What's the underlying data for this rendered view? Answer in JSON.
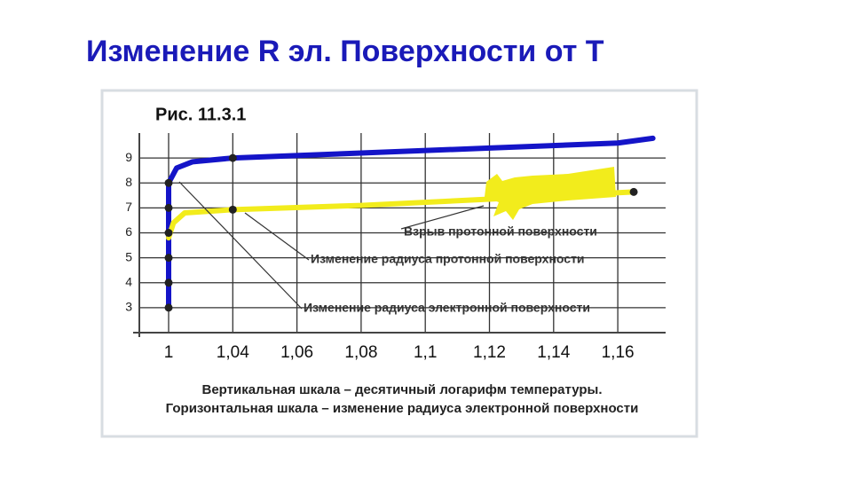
{
  "title": "Изменение R эл. Поверхности от T",
  "chart_data": {
    "type": "line",
    "figure_label": "Рис. 11.3.1",
    "caption": [
      "Вертикальная шкала – десятичный логарифм температуры.",
      "Горизонтальная шкала – изменение радиуса электронной поверхности"
    ],
    "xlim": [
      0.981,
      1.175
    ],
    "xticks": [
      1,
      {
        "value": 1.04,
        "label": "1,04"
      },
      {
        "value": 1.06,
        "label": "1,06"
      },
      {
        "value": 1.08,
        "label": "1,08"
      },
      {
        "value": 1.1,
        "label": "1,1"
      },
      {
        "value": 1.12,
        "label": "1,12"
      },
      {
        "value": 1.14,
        "label": "1,14"
      },
      {
        "value": 1.16,
        "label": "1,16"
      }
    ],
    "ylim": [
      2,
      10
    ],
    "yticks": [
      3,
      4,
      5,
      6,
      7,
      8,
      9
    ],
    "grid": true,
    "series": [
      {
        "name": "Изменение радиуса электронной поверхности",
        "color": "#1414c8",
        "x": [
          1,
          1,
          1,
          1,
          1,
          1,
          1.005,
          1.015,
          1.04,
          1.08,
          1.12,
          1.16,
          1.171
        ],
        "values": [
          3,
          4,
          5,
          6,
          7,
          8,
          8.6,
          8.85,
          9.0,
          9.2,
          9.4,
          9.6,
          9.79
        ]
      },
      {
        "name": "Изменение радиуса протонной поверхности",
        "color": "#f2ec1c",
        "x": [
          1,
          1.003,
          1.01,
          1.04,
          1.08,
          1.12,
          1.165
        ],
        "values": [
          5.8,
          6.4,
          6.8,
          6.93,
          7.1,
          7.35,
          7.64
        ]
      }
    ],
    "dots": {
      "color": "#222222",
      "x": [
        1,
        1,
        1,
        1,
        1,
        1,
        1.04,
        1.04,
        1.165
      ],
      "values": [
        3,
        4,
        5,
        6,
        7,
        8,
        9,
        6.93,
        7.64
      ]
    },
    "annotation": "Взрыв протонной поверхности"
  }
}
